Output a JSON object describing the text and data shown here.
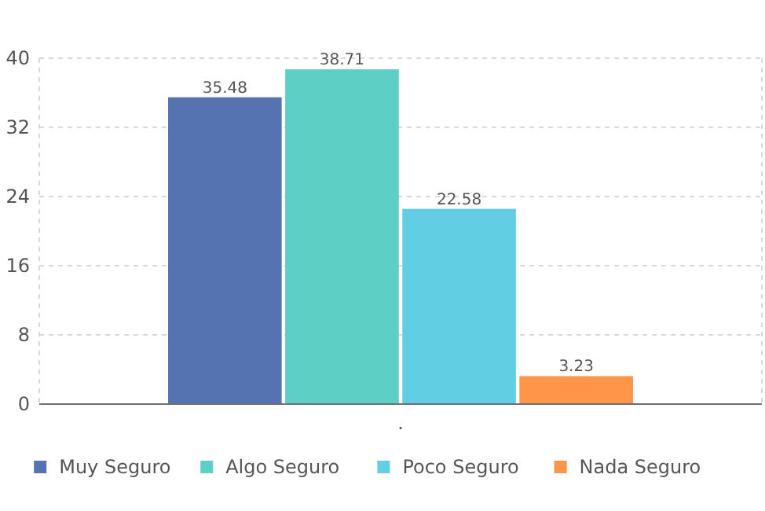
{
  "chart_data": {
    "type": "bar",
    "categories": [
      "."
    ],
    "series": [
      {
        "name": "Muy Seguro",
        "color": "#5573b0",
        "values": [
          35.48
        ]
      },
      {
        "name": "Algo Seguro",
        "color": "#5ecfc4",
        "values": [
          38.71
        ]
      },
      {
        "name": "Poco Seguro",
        "color": "#62cee3",
        "values": [
          22.58
        ]
      },
      {
        "name": "Nada Seguro",
        "color": "#ff9548",
        "values": [
          3.23
        ]
      }
    ],
    "ylim": [
      0,
      40
    ],
    "yticks": [
      0,
      8,
      16,
      24,
      32,
      40
    ],
    "grid": "y",
    "legend": "bottom",
    "data_labels": true
  }
}
